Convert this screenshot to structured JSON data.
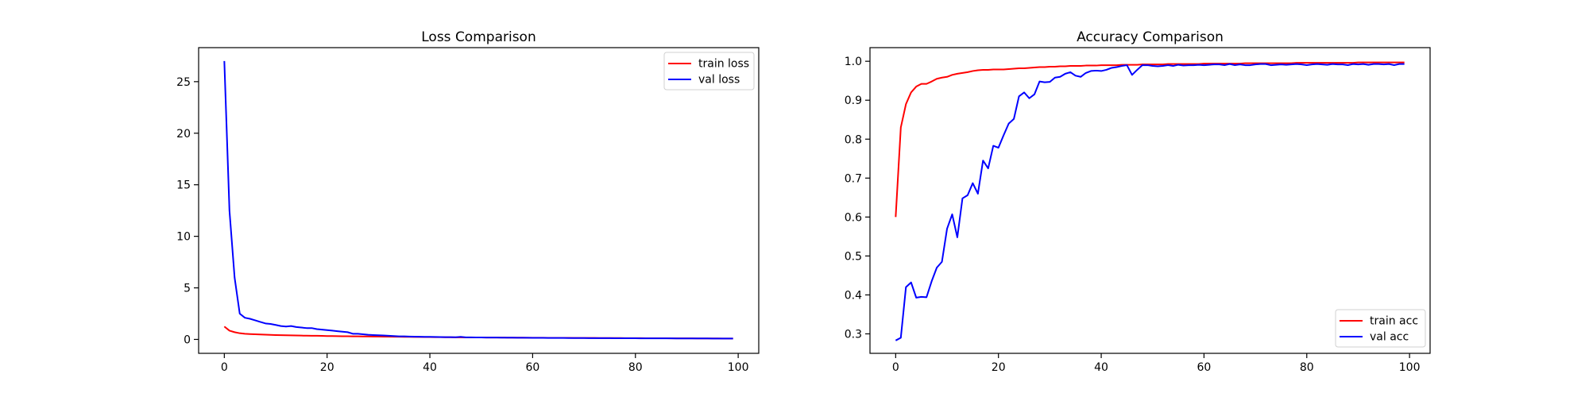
{
  "colors": {
    "train": "#ff0000",
    "val": "#0000ff"
  },
  "chart_data": [
    {
      "type": "line",
      "title": "Loss Comparison",
      "xlabel": "",
      "ylabel": "",
      "xlim": [
        -5,
        104
      ],
      "ylim": [
        -1.35,
        28.3
      ],
      "xticks": [
        0,
        20,
        40,
        60,
        80,
        100
      ],
      "yticks": [
        0,
        5,
        10,
        15,
        20,
        25
      ],
      "grid": false,
      "legend_position": "upper right",
      "series": [
        {
          "name": "train loss",
          "color": "#ff0000",
          "values": [
            1.25,
            0.85,
            0.7,
            0.6,
            0.55,
            0.52,
            0.5,
            0.48,
            0.46,
            0.44,
            0.42,
            0.41,
            0.4,
            0.39,
            0.38,
            0.37,
            0.36,
            0.355,
            0.35,
            0.34,
            0.33,
            0.325,
            0.32,
            0.31,
            0.305,
            0.3,
            0.295,
            0.29,
            0.285,
            0.28,
            0.275,
            0.27,
            0.265,
            0.26,
            0.255,
            0.25,
            0.245,
            0.24,
            0.235,
            0.23,
            0.225,
            0.22,
            0.215,
            0.21,
            0.205,
            0.2,
            0.198,
            0.195,
            0.193,
            0.19,
            0.188,
            0.185,
            0.183,
            0.18,
            0.178,
            0.175,
            0.173,
            0.17,
            0.168,
            0.165,
            0.163,
            0.16,
            0.158,
            0.156,
            0.154,
            0.152,
            0.15,
            0.148,
            0.146,
            0.144,
            0.142,
            0.14,
            0.138,
            0.136,
            0.134,
            0.132,
            0.13,
            0.128,
            0.126,
            0.124,
            0.122,
            0.12,
            0.118,
            0.116,
            0.114,
            0.112,
            0.11,
            0.108,
            0.106,
            0.104,
            0.102,
            0.1,
            0.098,
            0.096,
            0.094,
            0.092,
            0.09,
            0.088,
            0.086,
            0.085
          ]
        },
        {
          "name": "val loss",
          "color": "#0000ff",
          "values": [
            27.0,
            12.5,
            6.0,
            2.5,
            2.1,
            2.0,
            1.85,
            1.7,
            1.55,
            1.5,
            1.4,
            1.3,
            1.25,
            1.3,
            1.2,
            1.15,
            1.1,
            1.1,
            1.0,
            0.95,
            0.9,
            0.85,
            0.8,
            0.75,
            0.7,
            0.55,
            0.55,
            0.5,
            0.45,
            0.42,
            0.4,
            0.38,
            0.35,
            0.33,
            0.3,
            0.3,
            0.28,
            0.27,
            0.26,
            0.25,
            0.25,
            0.24,
            0.23,
            0.22,
            0.22,
            0.21,
            0.25,
            0.2,
            0.2,
            0.19,
            0.19,
            0.18,
            0.18,
            0.18,
            0.17,
            0.17,
            0.17,
            0.16,
            0.16,
            0.16,
            0.15,
            0.15,
            0.15,
            0.14,
            0.14,
            0.14,
            0.14,
            0.13,
            0.13,
            0.13,
            0.13,
            0.12,
            0.12,
            0.12,
            0.12,
            0.12,
            0.11,
            0.11,
            0.11,
            0.11,
            0.11,
            0.1,
            0.1,
            0.1,
            0.1,
            0.1,
            0.1,
            0.1,
            0.09,
            0.09,
            0.09,
            0.09,
            0.09,
            0.09,
            0.09,
            0.08,
            0.08,
            0.08,
            0.08,
            0.08
          ]
        }
      ]
    },
    {
      "type": "line",
      "title": "Accuracy Comparison",
      "xlabel": "",
      "ylabel": "",
      "xlim": [
        -5,
        104
      ],
      "ylim": [
        0.25,
        1.035
      ],
      "xticks": [
        0,
        20,
        40,
        60,
        80,
        100
      ],
      "yticks": [
        0.3,
        0.4,
        0.5,
        0.6,
        0.7,
        0.8,
        0.9,
        1.0
      ],
      "grid": false,
      "legend_position": "lower right",
      "series": [
        {
          "name": "train acc",
          "color": "#ff0000",
          "values": [
            0.6,
            0.83,
            0.89,
            0.92,
            0.935,
            0.942,
            0.942,
            0.948,
            0.955,
            0.958,
            0.96,
            0.965,
            0.968,
            0.97,
            0.972,
            0.975,
            0.977,
            0.978,
            0.978,
            0.979,
            0.979,
            0.979,
            0.98,
            0.981,
            0.982,
            0.982,
            0.983,
            0.984,
            0.985,
            0.985,
            0.986,
            0.986,
            0.987,
            0.987,
            0.988,
            0.988,
            0.988,
            0.989,
            0.989,
            0.989,
            0.99,
            0.99,
            0.99,
            0.99,
            0.991,
            0.991,
            0.991,
            0.991,
            0.992,
            0.992,
            0.992,
            0.992,
            0.992,
            0.993,
            0.993,
            0.993,
            0.993,
            0.993,
            0.993,
            0.993,
            0.994,
            0.994,
            0.994,
            0.994,
            0.994,
            0.994,
            0.994,
            0.994,
            0.995,
            0.995,
            0.995,
            0.995,
            0.995,
            0.995,
            0.995,
            0.995,
            0.995,
            0.995,
            0.996,
            0.996,
            0.996,
            0.996,
            0.996,
            0.996,
            0.996,
            0.996,
            0.996,
            0.996,
            0.996,
            0.996,
            0.997,
            0.997,
            0.997,
            0.997,
            0.997,
            0.997,
            0.997,
            0.997,
            0.997,
            0.997
          ]
        },
        {
          "name": "val acc",
          "color": "#0000ff",
          "values": [
            0.283,
            0.29,
            0.42,
            0.432,
            0.393,
            0.395,
            0.394,
            0.435,
            0.47,
            0.485,
            0.57,
            0.607,
            0.548,
            0.648,
            0.656,
            0.687,
            0.66,
            0.745,
            0.725,
            0.783,
            0.778,
            0.81,
            0.84,
            0.852,
            0.91,
            0.92,
            0.905,
            0.915,
            0.948,
            0.946,
            0.947,
            0.958,
            0.96,
            0.968,
            0.972,
            0.963,
            0.96,
            0.97,
            0.975,
            0.976,
            0.975,
            0.978,
            0.983,
            0.985,
            0.988,
            0.99,
            0.965,
            0.978,
            0.99,
            0.99,
            0.988,
            0.987,
            0.988,
            0.99,
            0.988,
            0.991,
            0.989,
            0.99,
            0.99,
            0.991,
            0.99,
            0.991,
            0.992,
            0.992,
            0.99,
            0.993,
            0.99,
            0.992,
            0.99,
            0.99,
            0.992,
            0.993,
            0.993,
            0.99,
            0.991,
            0.992,
            0.991,
            0.992,
            0.993,
            0.992,
            0.99,
            0.992,
            0.993,
            0.992,
            0.991,
            0.993,
            0.992,
            0.992,
            0.99,
            0.993,
            0.992,
            0.993,
            0.991,
            0.993,
            0.993,
            0.992,
            0.993,
            0.99,
            0.993,
            0.993
          ]
        }
      ]
    }
  ]
}
